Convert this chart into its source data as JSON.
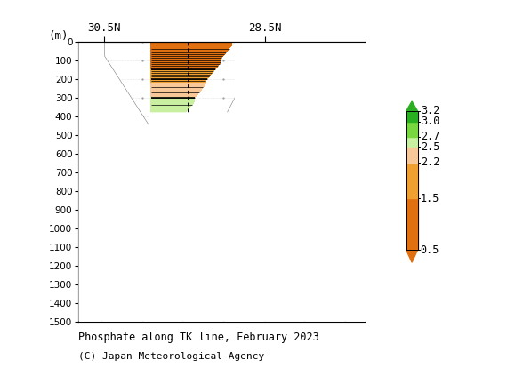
{
  "title_line1": "Phosphate along TK line, February 2023",
  "title_line2": "(C) Japan Meteorological Agency",
  "xlabel_left": "30.5N",
  "xlabel_right": "28.5N",
  "ylabel": "(m)",
  "ylim": [
    0,
    1500
  ],
  "yticks": [
    0,
    100,
    200,
    300,
    400,
    500,
    600,
    700,
    800,
    900,
    1000,
    1100,
    1200,
    1300,
    1400,
    1500
  ],
  "colorbar_levels": [
    0.5,
    1.5,
    2.2,
    2.5,
    2.7,
    3.0,
    3.2
  ],
  "colorbar_colors": [
    "#e07010",
    "#f0a030",
    "#f8c898",
    "#c8f0a0",
    "#78d840",
    "#28b020"
  ],
  "background_color": "#ffffff"
}
